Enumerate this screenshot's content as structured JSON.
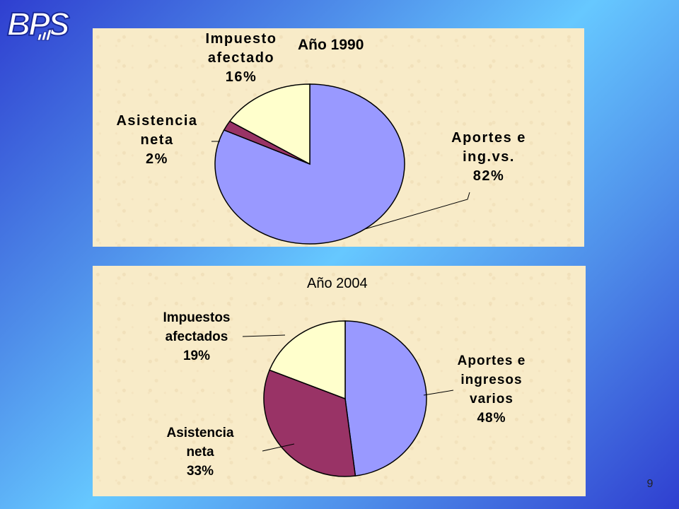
{
  "slide": {
    "logo_text": "BPS",
    "page_number": "9"
  },
  "chart_data": [
    {
      "type": "pie",
      "title": "Año 1990",
      "slices": [
        {
          "label_lines": [
            "Aportes e",
            "ing.vs."
          ],
          "value_label": "82%",
          "value": 82,
          "color": "#9999ff"
        },
        {
          "label_lines": [
            "Asistencia",
            "neta"
          ],
          "value_label": "2%",
          "value": 2,
          "color": "#993366"
        },
        {
          "label_lines": [
            "Impuesto",
            "afectado"
          ],
          "value_label": "16%",
          "value": 16,
          "color": "#ffffcc"
        }
      ]
    },
    {
      "type": "pie",
      "title": "Año 2004",
      "slices": [
        {
          "label_lines": [
            "Aportes e",
            "ingresos",
            "varios"
          ],
          "value_label": "48%",
          "value": 48,
          "color": "#9999ff"
        },
        {
          "label_lines": [
            "Asistencia",
            "neta"
          ],
          "value_label": "33%",
          "value": 33,
          "color": "#993366"
        },
        {
          "label_lines": [
            "Impuestos",
            "afectados"
          ],
          "value_label": "19%",
          "value": 19,
          "color": "#ffffcc"
        }
      ]
    }
  ]
}
